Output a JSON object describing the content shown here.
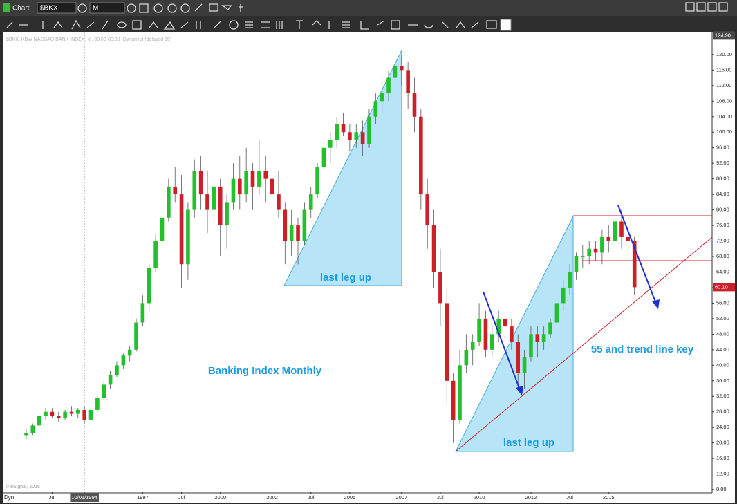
{
  "toolbar": {
    "title": "Chart",
    "symbol": "$BKX",
    "interval": "M"
  },
  "footer": {
    "mode": "Dyn"
  },
  "chart_data": {
    "type": "candlestick",
    "header": "$BKX, KBW NASDAQ BANK INDEX, M, 00:00-00:00 (Dynamic) (delayed 15)",
    "copyright": "© eSignal, 2016",
    "annotations": [
      "last leg up",
      "last leg up",
      "Banking Index Monthly",
      "55 and trend line key"
    ],
    "x": [
      1992.5,
      1992.75,
      1993,
      1993.25,
      1993.5,
      1993.75,
      1994,
      1994.25,
      1994.5,
      1994.75,
      1995,
      1995.25,
      1995.5,
      1995.75,
      1996,
      1996.25,
      1996.5,
      1996.75,
      1997,
      1997.25,
      1997.5,
      1997.75,
      1998,
      1998.25,
      1998.5,
      1998.75,
      1999,
      1999.25,
      1999.5,
      1999.75,
      2000,
      2000.25,
      2000.5,
      2000.75,
      2001,
      2001.25,
      2001.5,
      2001.75,
      2002,
      2002.25,
      2002.5,
      2002.75,
      2003,
      2003.25,
      2003.5,
      2003.75,
      2004,
      2004.25,
      2004.5,
      2004.75,
      2005,
      2005.25,
      2005.5,
      2005.75,
      2006,
      2006.25,
      2006.5,
      2006.75,
      2007,
      2007.25,
      2007.5,
      2007.75,
      2008,
      2008.25,
      2008.5,
      2008.75,
      2009,
      2009.25,
      2009.5,
      2009.75,
      2010,
      2010.25,
      2010.5,
      2010.75,
      2011,
      2011.25,
      2011.5,
      2011.75,
      2012,
      2012.25,
      2012.5,
      2012.75,
      2013,
      2013.25,
      2013.5,
      2013.75,
      2014,
      2014.25,
      2014.5,
      2014.75,
      2015,
      2015.25,
      2015.5,
      2015.75,
      2016
    ],
    "open": [
      22,
      22.5,
      24.5,
      27,
      28,
      27,
      26.5,
      28,
      27.5,
      28.5,
      26,
      28.5,
      31.5,
      35,
      37.5,
      40,
      42.5,
      44,
      51,
      56,
      65,
      72,
      78,
      86,
      84,
      66,
      80,
      90,
      84,
      80,
      86,
      76,
      82,
      88,
      84,
      90,
      86,
      90,
      88,
      84,
      80,
      72,
      76,
      72,
      80,
      84,
      91,
      96,
      98,
      102,
      100,
      98,
      100,
      97,
      104,
      108,
      110,
      114,
      117,
      116,
      110,
      104,
      84,
      76,
      64,
      56,
      36,
      26,
      40,
      44,
      46,
      52,
      44,
      48,
      52,
      50,
      46,
      38,
      42,
      48,
      46,
      48,
      51,
      56,
      60,
      64,
      68,
      68,
      70,
      69,
      73,
      72,
      77,
      73,
      72
    ],
    "high": [
      23.5,
      25,
      27.5,
      29,
      29,
      28,
      28.5,
      29.5,
      29,
      29.5,
      29,
      32,
      36,
      38.5,
      41,
      43,
      45,
      52,
      58,
      66,
      74,
      80,
      88,
      91,
      89,
      82,
      93,
      94,
      90,
      88,
      88,
      84,
      92,
      94,
      96,
      92,
      98,
      94,
      92,
      90,
      82,
      80,
      78,
      82,
      86,
      92,
      98,
      100,
      104,
      105,
      102,
      102,
      103,
      106,
      110,
      114,
      116,
      118,
      120,
      118,
      114,
      106,
      88,
      80,
      70,
      60,
      38,
      44,
      48,
      48,
      56,
      54,
      50,
      54,
      54,
      52,
      48,
      44,
      50,
      50,
      50,
      52,
      58,
      62,
      66,
      69,
      71,
      72,
      72,
      75,
      76,
      79,
      80,
      76,
      73
    ],
    "low": [
      21,
      22,
      24,
      26,
      26.5,
      25.5,
      26,
      27,
      26.5,
      25,
      25.5,
      28,
      31,
      34,
      37,
      39,
      41,
      43.5,
      50,
      54,
      64,
      70,
      77,
      82,
      60,
      62,
      78,
      80,
      74,
      76,
      68,
      70,
      80,
      80,
      82,
      80,
      84,
      82,
      80,
      78,
      66,
      68,
      66,
      71,
      78,
      83,
      89,
      92,
      96,
      99,
      95,
      96,
      94,
      96,
      102,
      105,
      108,
      112,
      112,
      106,
      100,
      80,
      70,
      60,
      50,
      30,
      20,
      25,
      38,
      40,
      45,
      42,
      42,
      46,
      48,
      44,
      34,
      34,
      41,
      42,
      44,
      47,
      50,
      54,
      58,
      62,
      65,
      66,
      67,
      66,
      69,
      71,
      70,
      68,
      58
    ],
    "close": [
      22.5,
      24.5,
      27,
      28,
      27,
      26.5,
      28,
      27.5,
      28.5,
      26,
      28.5,
      31.5,
      35,
      37.5,
      40,
      42.5,
      44,
      51,
      56,
      65,
      72,
      78,
      86,
      84,
      66,
      80,
      90,
      84,
      80,
      86,
      76,
      82,
      88,
      84,
      90,
      86,
      90,
      88,
      84,
      80,
      72,
      76,
      72,
      80,
      84,
      91,
      96,
      98,
      102,
      100,
      98,
      100,
      97,
      104,
      108,
      110,
      114,
      117,
      116,
      110,
      104,
      84,
      76,
      64,
      56,
      36,
      26,
      40,
      44,
      46,
      52,
      44,
      48,
      52,
      50,
      46,
      38,
      42,
      48,
      46,
      48,
      51,
      56,
      60,
      64,
      68,
      68,
      70,
      69,
      73,
      72,
      77,
      73,
      72,
      60.1
    ],
    "up_color": "#22c02a",
    "down_color": "#cc1f2a",
    "xlim": [
      1991.7,
      2019.0
    ],
    "xticks": [
      {
        "value": 1993.5,
        "label": "Jul"
      },
      {
        "value": 1994.75,
        "label": "10/01/1994"
      },
      1997,
      {
        "value": 1998.5,
        "label": "Jul"
      },
      2000,
      2002,
      {
        "value": 2003.5,
        "label": "Jul"
      },
      2005,
      2007,
      {
        "value": 2008.5,
        "label": "Jul"
      },
      2010,
      2012,
      {
        "value": 2013.5,
        "label": "Jul"
      },
      2015
    ],
    "ylim": [
      7.3,
      125.5
    ],
    "yticks": [
      {
        "value": 8,
        "label": "8.00"
      },
      {
        "value": 12,
        "label": "12.00"
      },
      {
        "value": 16,
        "label": "16.00"
      },
      {
        "value": 20,
        "label": "20.00"
      },
      {
        "value": 24,
        "label": "24.00"
      },
      {
        "value": 28,
        "label": "28.00"
      },
      {
        "value": 32,
        "label": "32.00"
      },
      {
        "value": 36,
        "label": "36.00"
      },
      {
        "value": 40,
        "label": "40.00"
      },
      {
        "value": 44,
        "label": "44.00"
      },
      {
        "value": 48,
        "label": "48.00"
      },
      {
        "value": 52,
        "label": "52.00"
      },
      {
        "value": 56,
        "label": "56.00"
      },
      {
        "value": 60,
        "label": "60.00"
      },
      {
        "value": 64,
        "label": "64.00"
      },
      {
        "value": 68,
        "label": "68.00"
      },
      {
        "value": 72,
        "label": "72.00"
      },
      {
        "value": 76,
        "label": "76.00"
      },
      {
        "value": 80,
        "label": "80.00"
      },
      {
        "value": 84,
        "label": "84.00"
      },
      {
        "value": 88,
        "label": "88.00"
      },
      {
        "value": 92,
        "label": "92.00"
      },
      {
        "value": 96,
        "label": "96.00"
      },
      {
        "value": 100,
        "label": "100.00"
      },
      {
        "value": 104,
        "label": "104.00"
      },
      {
        "value": 108,
        "label": "108.00"
      },
      {
        "value": 112,
        "label": "112.00"
      },
      {
        "value": 116,
        "label": "116.00"
      },
      {
        "value": 120,
        "label": "120.00"
      }
    ],
    "price_markers": [
      {
        "value": 124.9,
        "label": "124.90",
        "color": "#4a4a4a"
      },
      {
        "value": 60.1,
        "label": "60.10",
        "color": "#cc1f2a"
      }
    ],
    "grid": false
  }
}
